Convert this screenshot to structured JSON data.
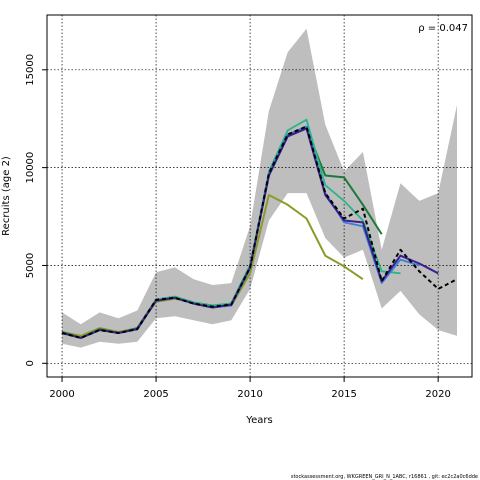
{
  "footer": "stockassessment.org, WKGREEN_GRI_N_1ABC, r16861 , git: ec2c2a0c6dde",
  "chart_data": {
    "type": "line",
    "title": "",
    "xlabel": "Years",
    "ylabel": "Recruits (age 2)",
    "annotation": "ρ = 0.047",
    "xlim": [
      1999.2,
      2021.8
    ],
    "ylim": [
      -700,
      17800
    ],
    "xticks": [
      2000,
      2005,
      2010,
      2015,
      2020
    ],
    "yticks": [
      0,
      5000,
      10000,
      15000
    ],
    "grid": true,
    "band": {
      "color": "#bebebe",
      "x": [
        2000,
        2001,
        2002,
        2003,
        2004,
        2005,
        2006,
        2007,
        2008,
        2009,
        2010,
        2011,
        2012,
        2013,
        2014,
        2015,
        2016,
        2017,
        2018,
        2019,
        2020,
        2021
      ],
      "upper": [
        2600,
        2000,
        2600,
        2300,
        2700,
        4650,
        4900,
        4300,
        4000,
        4100,
        7000,
        12900,
        15900,
        17100,
        12200,
        9800,
        10800,
        5800,
        9200,
        8300,
        8700,
        13200
      ],
      "lower": [
        1000,
        800,
        1100,
        1000,
        1100,
        2300,
        2400,
        2200,
        2000,
        2200,
        3800,
        7300,
        8700,
        8700,
        6400,
        5400,
        5800,
        2800,
        3700,
        2500,
        1700,
        1400
      ]
    },
    "series": [
      {
        "color": "#000000",
        "dashed": true,
        "width": 2,
        "x": [
          2000,
          2001,
          2002,
          2003,
          2004,
          2005,
          2006,
          2007,
          2008,
          2009,
          2010,
          2011,
          2012,
          2013,
          2014,
          2015,
          2016,
          2017,
          2018,
          2019,
          2020,
          2021
        ],
        "y": [
          1550,
          1300,
          1700,
          1550,
          1750,
          3250,
          3350,
          3050,
          2900,
          3000,
          4900,
          9700,
          11700,
          12100,
          8700,
          7400,
          7900,
          4200,
          5800,
          4700,
          3800,
          4300
        ]
      },
      {
        "color": "#3b1f8f",
        "dashed": false,
        "width": 2,
        "x": [
          2000,
          2001,
          2002,
          2003,
          2004,
          2005,
          2006,
          2007,
          2008,
          2009,
          2010,
          2011,
          2012,
          2013,
          2014,
          2015,
          2016,
          2017,
          2018,
          2019,
          2020
        ],
        "y": [
          1550,
          1300,
          1700,
          1550,
          1750,
          3200,
          3350,
          3050,
          2850,
          3000,
          4900,
          9600,
          11600,
          12000,
          8600,
          7300,
          7200,
          4200,
          5500,
          5100,
          4600
        ]
      },
      {
        "color": "#3c7fd6",
        "dashed": false,
        "width": 1.8,
        "x": [
          2000,
          2001,
          2002,
          2003,
          2004,
          2005,
          2006,
          2007,
          2008,
          2009,
          2010,
          2011,
          2012,
          2013,
          2014,
          2015,
          2016,
          2017,
          2018,
          2019
        ],
        "y": [
          1550,
          1300,
          1700,
          1550,
          1750,
          3200,
          3350,
          3050,
          2850,
          2950,
          4850,
          9700,
          11700,
          12100,
          8700,
          7200,
          7000,
          4100,
          5300,
          5000
        ]
      },
      {
        "color": "#2ab58c",
        "dashed": false,
        "width": 1.8,
        "x": [
          2000,
          2001,
          2002,
          2003,
          2004,
          2005,
          2006,
          2007,
          2008,
          2009,
          2010,
          2011,
          2012,
          2013,
          2014,
          2015,
          2016,
          2017,
          2018
        ],
        "y": [
          1550,
          1300,
          1700,
          1550,
          1750,
          3250,
          3400,
          3100,
          2950,
          3050,
          5000,
          9800,
          11900,
          12450,
          9100,
          8300,
          7300,
          4700,
          4600
        ]
      },
      {
        "color": "#1b7a3a",
        "dashed": false,
        "width": 2,
        "x": [
          2000,
          2001,
          2002,
          2003,
          2004,
          2005,
          2006,
          2007,
          2008,
          2009,
          2010,
          2011,
          2012,
          2013,
          2014,
          2015,
          2016,
          2017
        ],
        "y": [
          1600,
          1300,
          1750,
          1550,
          1800,
          3250,
          3400,
          3100,
          2950,
          3050,
          5000,
          9600,
          11600,
          12000,
          9600,
          9500,
          8100,
          6600
        ]
      },
      {
        "color": "#8c9a2a",
        "dashed": false,
        "width": 2,
        "x": [
          2000,
          2001,
          2002,
          2003,
          2004,
          2005,
          2006,
          2007,
          2008,
          2009,
          2010,
          2011,
          2012,
          2013,
          2014,
          2015,
          2016
        ],
        "y": [
          1600,
          1400,
          1800,
          1600,
          1800,
          3150,
          3300,
          3100,
          2950,
          2950,
          4600,
          8600,
          8100,
          7400,
          5500,
          4950,
          4300
        ]
      }
    ]
  }
}
